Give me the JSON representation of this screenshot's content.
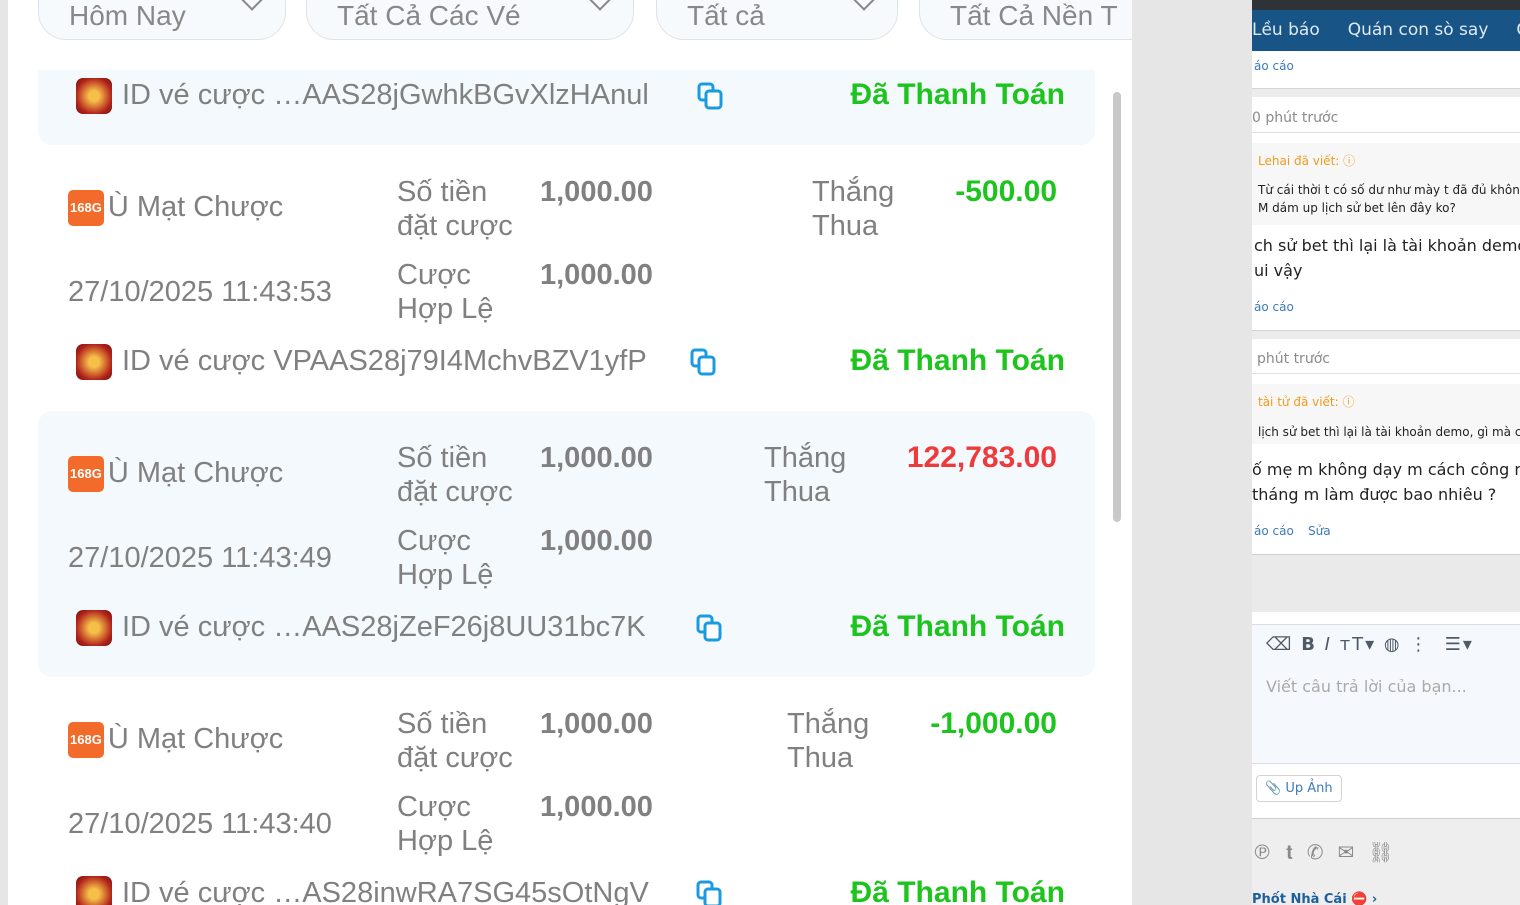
{
  "filters": [
    "Hôm Nay",
    "Tất Cả Các Vé",
    "Tất cả",
    "Tất Cả Nền T"
  ],
  "labels": {
    "amount": "Số tiền",
    "amount2": "đặt cược",
    "valid": "Cược",
    "valid2": "Hợp Lệ",
    "winloss": "Thắng",
    "winloss2": "Thua",
    "ticket_id": "ID vé cược"
  },
  "top_ticket": {
    "id": "…AAS28jGwhkBGvXlzHAnul",
    "status": "Đã Thanh Toán"
  },
  "bets": [
    {
      "game": "Ù Mạt Chược",
      "provider_badge": "168G",
      "datetime": "27/10/2025 11:43:53",
      "amount": "1,000.00",
      "valid": "1,000.00",
      "result": "-500.00",
      "result_color": "#1ec41e",
      "id": "VPAAS28j79I4MchvBZV1yfP",
      "status": "Đã Thanh Toán"
    },
    {
      "game": "Ù Mạt Chược",
      "provider_badge": "168G",
      "datetime": "27/10/2025 11:43:49",
      "amount": "1,000.00",
      "valid": "1,000.00",
      "result": "122,783.00",
      "result_color": "#ee3a3a",
      "id": "…AAS28jZeF26j8UU31bc7K",
      "status": "Đã Thanh Toán"
    },
    {
      "game": "Ù Mạt Chược",
      "provider_badge": "168G",
      "datetime": "27/10/2025 11:43:40",
      "amount": "1,000.00",
      "valid": "1,000.00",
      "result": "-1,000.00",
      "result_color": "#1ec41e",
      "id": "…AS28inwRA7SG45sOtNgV",
      "status": "Đã Thanh Toán"
    }
  ],
  "forum": {
    "nav": [
      "Lều báo",
      "Quán con sò say",
      "Ch"
    ],
    "report": "áo cáo",
    "post1": {
      "time": "0 phút trước",
      "quote_author": "Lehai đã viết:",
      "quote": [
        "Từ cái thời t có số dư như mày t đã đủ khôn đ",
        "M dám up lịch sử bet lên đây ko?"
      ],
      "body": [
        "ch sử bet thì lại là tài khoản demo",
        "ui vậy"
      ]
    },
    "post2": {
      "time": "phút trước",
      "quote_author": "tài tử đã viết:",
      "quote": [
        "lịch sử bet thì lại là tài khoản demo, gì mà chả"
      ],
      "body": [
        "ố mẹ m không dạy m cách công n",
        " tháng m làm được bao nhiêu ?"
      ],
      "edit": "Sửa"
    },
    "editor_placeholder": "Viết câu trả lời của bạn...",
    "upload": "Up Ảnh",
    "footer_link": "Phốt Nhà Cái"
  }
}
